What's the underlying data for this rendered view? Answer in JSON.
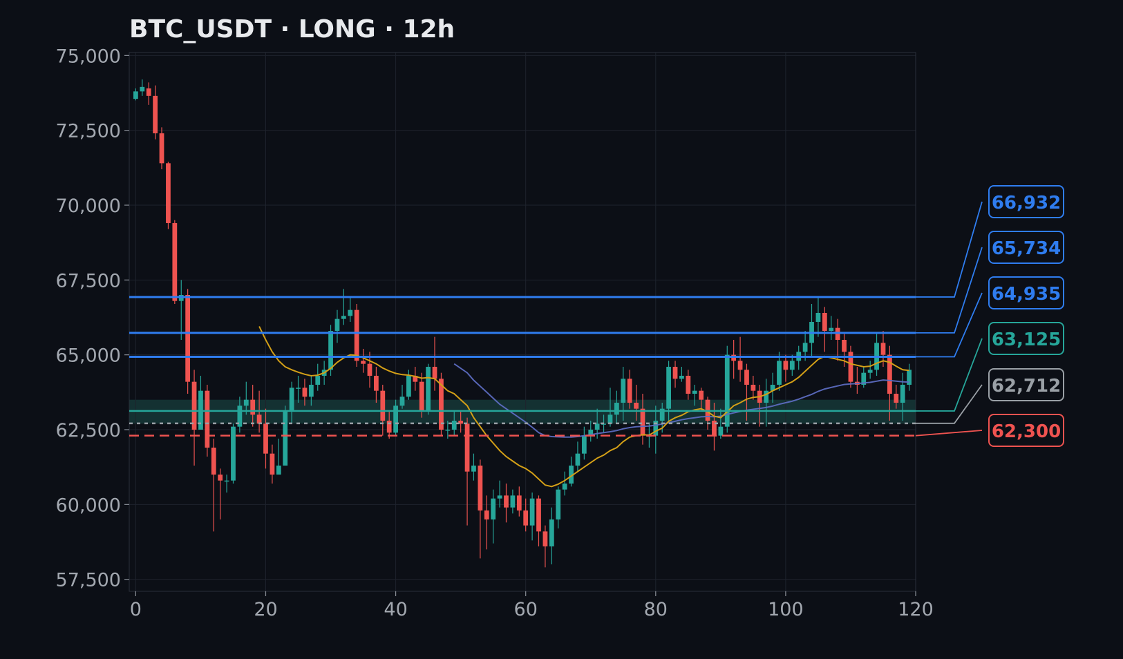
{
  "chart_data": {
    "type": "candlestick",
    "title": "BTC_USDT · LONG · 12h",
    "x_ticks": [
      0,
      20,
      40,
      60,
      80,
      100,
      120
    ],
    "y_ticks": [
      57500,
      60000,
      62500,
      65000,
      67500,
      70000,
      72500,
      75000
    ],
    "y_tick_labels": [
      "57,500",
      "60,000",
      "62,500",
      "65,000",
      "67,500",
      "70,000",
      "72,500",
      "75,000"
    ],
    "xlim": [
      -1,
      120
    ],
    "ylim": [
      57100,
      75100
    ],
    "grid": true,
    "colors": {
      "background": "#0c0f16",
      "up": "#26a69a",
      "down": "#ef5350",
      "take_profit": "#2f7df0",
      "entry": "#26a69a",
      "break_even": "#9aa0a6",
      "stop_loss": "#ef5350",
      "ma_fast": "#d4a017",
      "ma_slow": "#5c6bc0",
      "entry_zone": "#1f5c55"
    },
    "entry_zone": [
      62700,
      63500
    ],
    "levels": [
      {
        "kind": "take_profit",
        "value": 66932,
        "label": "66,932",
        "style": "solid"
      },
      {
        "kind": "take_profit",
        "value": 65734,
        "label": "65,734",
        "style": "solid"
      },
      {
        "kind": "take_profit",
        "value": 64935,
        "label": "64,935",
        "style": "solid"
      },
      {
        "kind": "entry",
        "value": 63125,
        "label": "63,125",
        "style": "solid"
      },
      {
        "kind": "break_even",
        "value": 62712,
        "label": "62,712",
        "style": "dotted"
      },
      {
        "kind": "stop_loss",
        "value": 62300,
        "label": "62,300",
        "style": "dashed"
      }
    ],
    "candles": [
      [
        0,
        73550,
        73800,
        73500,
        73900
      ],
      [
        1,
        73800,
        73950,
        73650,
        74200
      ],
      [
        2,
        73900,
        73650,
        73350,
        74100
      ],
      [
        3,
        73650,
        72400,
        72200,
        74000
      ],
      [
        4,
        72400,
        71400,
        71200,
        72600
      ],
      [
        5,
        71400,
        69400,
        69200,
        71450
      ],
      [
        6,
        69400,
        66800,
        66700,
        69500
      ],
      [
        7,
        66800,
        67000,
        65500,
        67500
      ],
      [
        8,
        67000,
        64100,
        63700,
        67200
      ],
      [
        9,
        64100,
        62500,
        61300,
        64500
      ],
      [
        10,
        62500,
        63800,
        62500,
        64300
      ],
      [
        11,
        63800,
        61900,
        61600,
        64000
      ],
      [
        12,
        61900,
        61000,
        59100,
        62200
      ],
      [
        13,
        61000,
        60800,
        59500,
        61200
      ],
      [
        14,
        60800,
        60800,
        60400,
        61000
      ],
      [
        15,
        60800,
        62600,
        60700,
        62700
      ],
      [
        16,
        62600,
        63300,
        62400,
        63600
      ],
      [
        17,
        63300,
        63500,
        63000,
        64100
      ],
      [
        18,
        63500,
        63000,
        62600,
        64000
      ],
      [
        19,
        63000,
        62700,
        62400,
        63800
      ],
      [
        20,
        62700,
        61700,
        61200,
        63200
      ],
      [
        21,
        61700,
        61000,
        60700,
        62000
      ],
      [
        22,
        61000,
        61300,
        61000,
        62200
      ],
      [
        23,
        61300,
        63100,
        61300,
        63300
      ],
      [
        24,
        63100,
        63900,
        62700,
        64100
      ],
      [
        25,
        63900,
        63900,
        63400,
        64300
      ],
      [
        26,
        63900,
        63600,
        63300,
        64200
      ],
      [
        27,
        63600,
        64000,
        63300,
        64300
      ],
      [
        28,
        64000,
        64300,
        63800,
        64700
      ],
      [
        29,
        64300,
        64500,
        64000,
        64800
      ],
      [
        30,
        64500,
        65800,
        64300,
        66000
      ],
      [
        31,
        65800,
        66200,
        65400,
        66500
      ],
      [
        32,
        66200,
        66300,
        66000,
        67200
      ],
      [
        33,
        66300,
        66500,
        66100,
        66900
      ],
      [
        34,
        66500,
        64800,
        64600,
        66700
      ],
      [
        35,
        64800,
        64700,
        64400,
        65200
      ],
      [
        36,
        64700,
        64300,
        63900,
        65100
      ],
      [
        37,
        64300,
        63800,
        63400,
        64600
      ],
      [
        38,
        63800,
        62800,
        62300,
        64000
      ],
      [
        39,
        62800,
        62400,
        62200,
        63100
      ],
      [
        40,
        62400,
        63300,
        62300,
        63500
      ],
      [
        41,
        63300,
        63600,
        63200,
        64000
      ],
      [
        42,
        63600,
        64300,
        63500,
        64500
      ],
      [
        43,
        64300,
        64100,
        63800,
        64600
      ],
      [
        44,
        64100,
        63100,
        62900,
        64400
      ],
      [
        45,
        63100,
        64600,
        63000,
        64700
      ],
      [
        46,
        64600,
        64200,
        63800,
        65600
      ],
      [
        47,
        64200,
        62500,
        62300,
        64400
      ],
      [
        48,
        62500,
        62500,
        62200,
        62800
      ],
      [
        49,
        62500,
        62800,
        62300,
        63100
      ],
      [
        50,
        62800,
        62700,
        62400,
        63100
      ],
      [
        51,
        62700,
        61100,
        59300,
        62900
      ],
      [
        52,
        61100,
        61300,
        60800,
        61700
      ],
      [
        53,
        61300,
        59800,
        58200,
        61500
      ],
      [
        54,
        59800,
        59500,
        58500,
        60300
      ],
      [
        55,
        59500,
        60200,
        58700,
        60500
      ],
      [
        56,
        60200,
        60300,
        59900,
        60800
      ],
      [
        57,
        60300,
        59900,
        59400,
        60700
      ],
      [
        58,
        59900,
        60300,
        59700,
        60500
      ],
      [
        59,
        60300,
        59800,
        59600,
        60600
      ],
      [
        60,
        59800,
        59300,
        59100,
        60200
      ],
      [
        61,
        59300,
        60200,
        58800,
        60400
      ],
      [
        62,
        60200,
        59100,
        58600,
        60300
      ],
      [
        63,
        59100,
        58600,
        57900,
        59300
      ],
      [
        64,
        58600,
        59500,
        58000,
        59900
      ],
      [
        65,
        59500,
        60500,
        59200,
        60600
      ],
      [
        66,
        60500,
        60700,
        60300,
        61100
      ],
      [
        67,
        60700,
        61300,
        60600,
        61600
      ],
      [
        68,
        61300,
        61700,
        61100,
        62100
      ],
      [
        69,
        61700,
        62300,
        61500,
        62600
      ],
      [
        70,
        62300,
        62500,
        62100,
        62800
      ],
      [
        71,
        62500,
        62700,
        62200,
        63200
      ],
      [
        72,
        62700,
        62700,
        62400,
        63000
      ],
      [
        73,
        62700,
        63000,
        62600,
        63900
      ],
      [
        74,
        63000,
        63400,
        62700,
        63800
      ],
      [
        75,
        63400,
        64200,
        62800,
        64600
      ],
      [
        76,
        64200,
        63400,
        63200,
        64500
      ],
      [
        77,
        63400,
        63200,
        62800,
        64000
      ],
      [
        78,
        63200,
        62300,
        62000,
        63700
      ],
      [
        79,
        62300,
        62300,
        61900,
        62700
      ],
      [
        80,
        62300,
        62800,
        61700,
        63300
      ],
      [
        81,
        62800,
        63200,
        62400,
        63400
      ],
      [
        82,
        63200,
        64600,
        62700,
        64800
      ],
      [
        83,
        64600,
        64200,
        63900,
        64800
      ],
      [
        84,
        64200,
        64300,
        64100,
        64600
      ],
      [
        85,
        64300,
        63700,
        63500,
        64500
      ],
      [
        86,
        63700,
        63800,
        63300,
        64000
      ],
      [
        87,
        63800,
        63500,
        63100,
        63900
      ],
      [
        88,
        63500,
        62800,
        62500,
        63600
      ],
      [
        89,
        62800,
        62300,
        61800,
        63400
      ],
      [
        90,
        62300,
        62600,
        62200,
        63200
      ],
      [
        91,
        62600,
        65000,
        62400,
        65300
      ],
      [
        92,
        65000,
        64800,
        64200,
        65500
      ],
      [
        93,
        64800,
        64500,
        64100,
        65600
      ],
      [
        94,
        64500,
        64000,
        62800,
        64700
      ],
      [
        95,
        64000,
        63800,
        63500,
        64300
      ],
      [
        96,
        63800,
        63400,
        62600,
        64000
      ],
      [
        97,
        63400,
        63800,
        62600,
        64200
      ],
      [
        98,
        63800,
        64000,
        63400,
        64400
      ],
      [
        99,
        64000,
        64800,
        63800,
        65100
      ],
      [
        100,
        64800,
        64500,
        64100,
        65000
      ],
      [
        101,
        64500,
        64800,
        64300,
        65000
      ],
      [
        102,
        64800,
        65100,
        64500,
        65300
      ],
      [
        103,
        65100,
        65400,
        64800,
        65800
      ],
      [
        104,
        65400,
        66100,
        64900,
        66700
      ],
      [
        105,
        66100,
        66400,
        65600,
        66900
      ],
      [
        106,
        66400,
        65800,
        65100,
        66600
      ],
      [
        107,
        65800,
        65900,
        65500,
        66300
      ],
      [
        108,
        65900,
        65500,
        64800,
        66200
      ],
      [
        109,
        65500,
        65100,
        64600,
        65700
      ],
      [
        110,
        65100,
        64100,
        63900,
        65300
      ],
      [
        111,
        64100,
        64000,
        63700,
        64600
      ],
      [
        112,
        64000,
        64400,
        63900,
        64600
      ],
      [
        113,
        64400,
        64500,
        64200,
        64800
      ],
      [
        114,
        64500,
        65400,
        64300,
        65700
      ],
      [
        115,
        65400,
        65000,
        64600,
        65800
      ],
      [
        116,
        65000,
        63700,
        62800,
        65300
      ],
      [
        117,
        63700,
        63400,
        63200,
        64000
      ],
      [
        118,
        63400,
        64000,
        62800,
        64400
      ],
      [
        119,
        64000,
        64500,
        63800,
        64700
      ]
    ],
    "ma_fast": [
      [
        19,
        65950
      ],
      [
        20,
        65500
      ],
      [
        21,
        65100
      ],
      [
        22,
        64800
      ],
      [
        23,
        64600
      ],
      [
        24,
        64500
      ],
      [
        25,
        64420
      ],
      [
        26,
        64350
      ],
      [
        27,
        64300
      ],
      [
        28,
        64320
      ],
      [
        29,
        64400
      ],
      [
        30,
        64550
      ],
      [
        31,
        64750
      ],
      [
        32,
        64900
      ],
      [
        33,
        65000
      ],
      [
        34,
        64980
      ],
      [
        35,
        64900
      ],
      [
        36,
        64800
      ],
      [
        37,
        64700
      ],
      [
        38,
        64560
      ],
      [
        39,
        64460
      ],
      [
        40,
        64380
      ],
      [
        41,
        64340
      ],
      [
        42,
        64320
      ],
      [
        43,
        64280
      ],
      [
        44,
        64220
      ],
      [
        45,
        64240
      ],
      [
        46,
        64200
      ],
      [
        47,
        64000
      ],
      [
        48,
        63800
      ],
      [
        49,
        63700
      ],
      [
        50,
        63500
      ],
      [
        51,
        63300
      ],
      [
        52,
        62900
      ],
      [
        53,
        62600
      ],
      [
        54,
        62300
      ],
      [
        55,
        62050
      ],
      [
        56,
        61800
      ],
      [
        57,
        61600
      ],
      [
        58,
        61450
      ],
      [
        59,
        61300
      ],
      [
        60,
        61200
      ],
      [
        61,
        61050
      ],
      [
        62,
        60850
      ],
      [
        63,
        60650
      ],
      [
        64,
        60600
      ],
      [
        65,
        60680
      ],
      [
        66,
        60800
      ],
      [
        67,
        60950
      ],
      [
        68,
        61100
      ],
      [
        69,
        61250
      ],
      [
        70,
        61400
      ],
      [
        71,
        61550
      ],
      [
        72,
        61650
      ],
      [
        73,
        61800
      ],
      [
        74,
        61900
      ],
      [
        75,
        62100
      ],
      [
        76,
        62250
      ],
      [
        77,
        62300
      ],
      [
        78,
        62330
      ],
      [
        79,
        62320
      ],
      [
        80,
        62450
      ],
      [
        81,
        62550
      ],
      [
        82,
        62780
      ],
      [
        83,
        62900
      ],
      [
        84,
        62980
      ],
      [
        85,
        63100
      ],
      [
        86,
        63160
      ],
      [
        87,
        63200
      ],
      [
        88,
        63100
      ],
      [
        89,
        62950
      ],
      [
        90,
        62900
      ],
      [
        91,
        63100
      ],
      [
        92,
        63300
      ],
      [
        93,
        63400
      ],
      [
        94,
        63520
      ],
      [
        95,
        63580
      ],
      [
        96,
        63600
      ],
      [
        97,
        63680
      ],
      [
        98,
        63800
      ],
      [
        99,
        63900
      ],
      [
        100,
        64000
      ],
      [
        101,
        64100
      ],
      [
        102,
        64250
      ],
      [
        103,
        64450
      ],
      [
        104,
        64650
      ],
      [
        105,
        64850
      ],
      [
        106,
        64950
      ],
      [
        107,
        64900
      ],
      [
        108,
        64850
      ],
      [
        109,
        64800
      ],
      [
        110,
        64700
      ],
      [
        111,
        64650
      ],
      [
        112,
        64600
      ],
      [
        113,
        64620
      ],
      [
        114,
        64720
      ],
      [
        115,
        64800
      ],
      [
        116,
        64750
      ],
      [
        117,
        64620
      ],
      [
        118,
        64500
      ],
      [
        119,
        64480
      ]
    ],
    "ma_slow": [
      [
        49,
        64700
      ],
      [
        50,
        64550
      ],
      [
        51,
        64400
      ],
      [
        52,
        64150
      ],
      [
        53,
        63950
      ],
      [
        54,
        63750
      ],
      [
        55,
        63550
      ],
      [
        56,
        63350
      ],
      [
        57,
        63200
      ],
      [
        58,
        63050
      ],
      [
        59,
        62900
      ],
      [
        60,
        62750
      ],
      [
        61,
        62580
      ],
      [
        62,
        62400
      ],
      [
        63,
        62300
      ],
      [
        64,
        62270
      ],
      [
        65,
        62260
      ],
      [
        66,
        62250
      ],
      [
        67,
        62250
      ],
      [
        68,
        62270
      ],
      [
        69,
        62300
      ],
      [
        70,
        62330
      ],
      [
        71,
        62370
      ],
      [
        72,
        62400
      ],
      [
        73,
        62430
      ],
      [
        74,
        62470
      ],
      [
        75,
        62530
      ],
      [
        76,
        62570
      ],
      [
        77,
        62600
      ],
      [
        78,
        62610
      ],
      [
        79,
        62620
      ],
      [
        80,
        62650
      ],
      [
        81,
        62690
      ],
      [
        82,
        62730
      ],
      [
        83,
        62780
      ],
      [
        84,
        62830
      ],
      [
        85,
        62870
      ],
      [
        86,
        62900
      ],
      [
        87,
        62930
      ],
      [
        88,
        62940
      ],
      [
        89,
        62930
      ],
      [
        90,
        62950
      ],
      [
        91,
        63010
      ],
      [
        92,
        63060
      ],
      [
        93,
        63110
      ],
      [
        94,
        63150
      ],
      [
        95,
        63180
      ],
      [
        96,
        63210
      ],
      [
        97,
        63240
      ],
      [
        98,
        63290
      ],
      [
        99,
        63350
      ],
      [
        100,
        63400
      ],
      [
        101,
        63450
      ],
      [
        102,
        63520
      ],
      [
        103,
        63600
      ],
      [
        104,
        63680
      ],
      [
        105,
        63780
      ],
      [
        106,
        63860
      ],
      [
        107,
        63910
      ],
      [
        108,
        63960
      ],
      [
        109,
        64010
      ],
      [
        110,
        64030
      ],
      [
        111,
        64040
      ],
      [
        112,
        64060
      ],
      [
        113,
        64080
      ],
      [
        114,
        64120
      ],
      [
        115,
        64160
      ],
      [
        116,
        64140
      ],
      [
        117,
        64120
      ],
      [
        118,
        64100
      ],
      [
        119,
        64090
      ]
    ]
  }
}
